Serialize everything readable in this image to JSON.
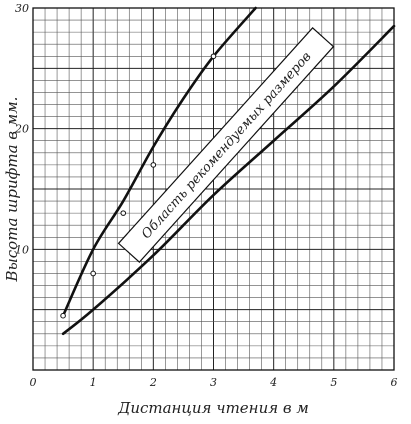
{
  "chart_data": {
    "type": "line",
    "xlabel": "Дистанция чтения в м",
    "ylabel": "Высота шрифта в мм.",
    "xlim": [
      0,
      6
    ],
    "ylim": [
      0,
      30
    ],
    "x_ticks": [
      0,
      1,
      2,
      3,
      4,
      5,
      6
    ],
    "x_tick_labels": [
      "0",
      "1",
      "2",
      "3",
      "4",
      "5",
      "6"
    ],
    "y_ticks": [
      10,
      20,
      30
    ],
    "y_tick_labels": [
      "10",
      "20",
      "30"
    ],
    "grid": true,
    "annotation": "Область рекомендуемых размеров",
    "series": [
      {
        "values": [
          [
            0.5,
            4.5
          ],
          [
            1,
            10
          ],
          [
            1.5,
            14
          ],
          [
            2,
            18.5
          ],
          [
            2.5,
            22.5
          ],
          [
            3,
            26
          ],
          [
            3.7,
            30
          ]
        ]
      },
      {
        "values": [
          [
            0.5,
            3
          ],
          [
            1,
            5
          ],
          [
            2,
            9.5
          ],
          [
            3,
            14.5
          ],
          [
            4,
            19
          ],
          [
            5,
            23.5
          ],
          [
            6,
            28.5
          ]
        ]
      }
    ],
    "points": [
      [
        0.5,
        4.5
      ],
      [
        1,
        8
      ],
      [
        1.5,
        13
      ],
      [
        2,
        17
      ],
      [
        3,
        26
      ]
    ]
  }
}
